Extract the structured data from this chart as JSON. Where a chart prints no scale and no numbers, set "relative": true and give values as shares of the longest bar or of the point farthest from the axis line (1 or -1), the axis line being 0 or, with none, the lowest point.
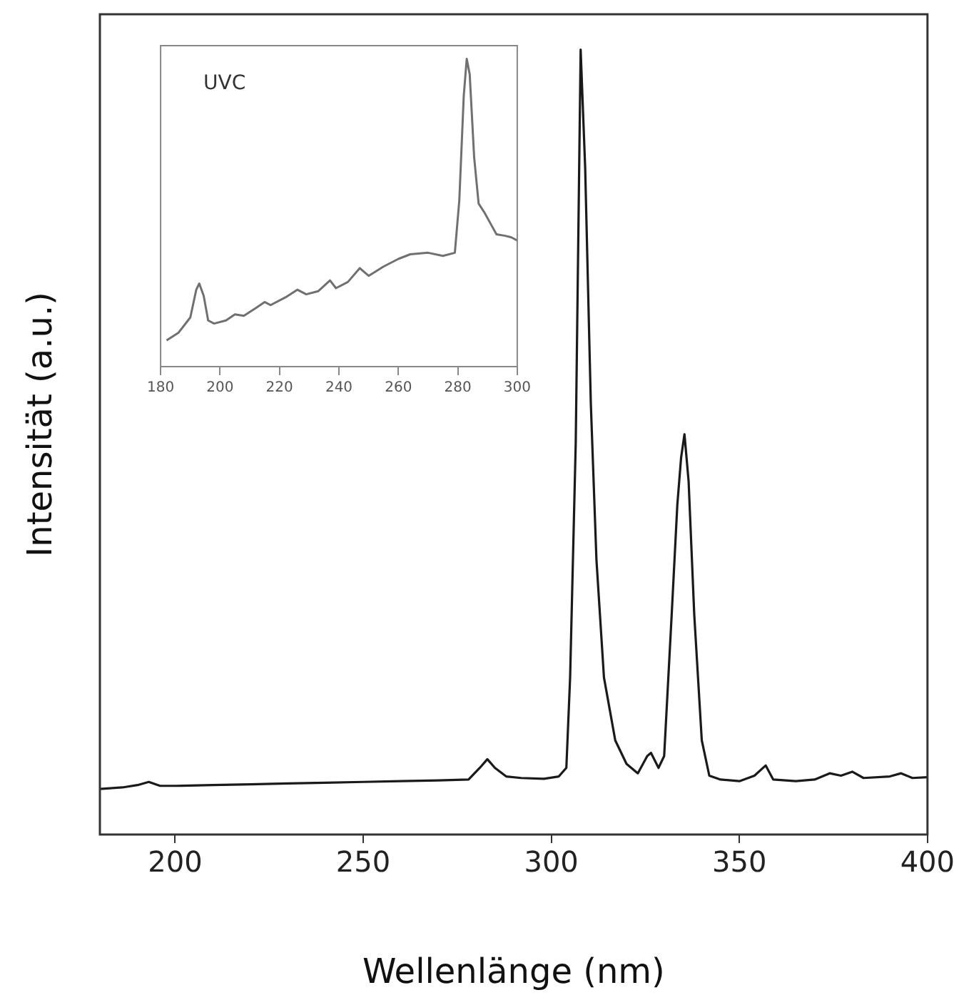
{
  "chart_data": [
    {
      "type": "line",
      "xlabel": "Wellenlänge (nm)",
      "ylabel": "Intensität (a.u.)",
      "relative": true,
      "tick_labels": "x",
      "xlim": [
        180,
        400
      ],
      "xticks": [
        200,
        250,
        300,
        350,
        400
      ],
      "color": "#1a1a1a",
      "x": [
        180,
        186,
        190,
        193,
        196,
        200,
        210,
        220,
        230,
        240,
        250,
        260,
        270,
        278,
        281,
        283,
        285,
        288,
        292,
        298,
        302,
        304,
        305,
        306.5,
        307.8,
        309,
        310.5,
        312,
        314,
        317,
        320,
        323,
        325.5,
        326.5,
        328.5,
        330,
        332,
        333.5,
        334.5,
        335.4,
        336.5,
        338,
        340,
        342,
        345,
        350,
        354,
        357,
        359,
        365,
        370,
        374,
        377,
        380,
        383,
        390,
        393,
        396,
        400
      ],
      "values": [
        0.058,
        0.06,
        0.063,
        0.067,
        0.062,
        0.062,
        0.063,
        0.064,
        0.065,
        0.066,
        0.067,
        0.068,
        0.069,
        0.07,
        0.085,
        0.096,
        0.085,
        0.074,
        0.072,
        0.071,
        0.074,
        0.085,
        0.2,
        0.5,
        1.0,
        0.85,
        0.55,
        0.35,
        0.2,
        0.12,
        0.09,
        0.078,
        0.1,
        0.104,
        0.085,
        0.1,
        0.28,
        0.42,
        0.48,
        0.51,
        0.45,
        0.28,
        0.12,
        0.075,
        0.07,
        0.068,
        0.075,
        0.088,
        0.07,
        0.068,
        0.07,
        0.078,
        0.075,
        0.08,
        0.072,
        0.074,
        0.078,
        0.072,
        0.073
      ]
    },
    {
      "type": "line",
      "relative": true,
      "tick_labels": "x",
      "xlim": [
        180,
        300
      ],
      "xticks": [
        180,
        200,
        220,
        240,
        260,
        280,
        300
      ],
      "color": "#707070",
      "annotations": [
        "UVC"
      ],
      "x": [
        182,
        186,
        190,
        192,
        193,
        194.5,
        196,
        198,
        202,
        205,
        208,
        212,
        215,
        217,
        222,
        226,
        229,
        233,
        237,
        239,
        243,
        247,
        250,
        255,
        260,
        264,
        270,
        275,
        279,
        280.5,
        282,
        283,
        284,
        285.5,
        287,
        289,
        291,
        293,
        296,
        298,
        300
      ],
      "values": [
        0.085,
        0.11,
        0.16,
        0.25,
        0.27,
        0.23,
        0.15,
        0.14,
        0.15,
        0.17,
        0.165,
        0.19,
        0.21,
        0.2,
        0.225,
        0.25,
        0.235,
        0.245,
        0.28,
        0.255,
        0.275,
        0.32,
        0.295,
        0.325,
        0.35,
        0.365,
        0.37,
        0.36,
        0.37,
        0.54,
        0.88,
        1.0,
        0.95,
        0.68,
        0.53,
        0.5,
        0.465,
        0.43,
        0.425,
        0.42,
        0.41
      ]
    }
  ]
}
